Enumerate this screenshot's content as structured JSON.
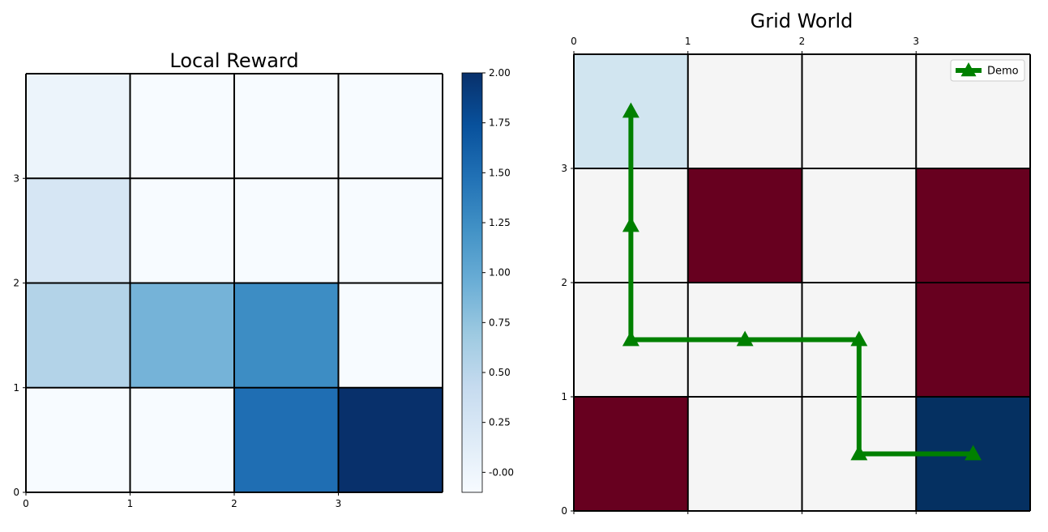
{
  "chart_data": [
    {
      "type": "heatmap",
      "title": "Local Reward",
      "xlabel": "",
      "ylabel": "",
      "x_ticks": [
        "0",
        "1",
        "2",
        "3"
      ],
      "y_ticks": [
        "0",
        "1",
        "2",
        "3"
      ],
      "rows_top_to_bottom": [
        [
          0.02,
          -0.1,
          -0.1,
          -0.1
        ],
        [
          0.25,
          -0.1,
          -0.1,
          -0.1
        ],
        [
          0.55,
          0.9,
          1.25,
          -0.1
        ],
        [
          -0.1,
          -0.1,
          1.5,
          2.0
        ]
      ],
      "colormap": "Blues",
      "colorbar": {
        "min": -0.1,
        "max": 2.0,
        "ticks": [
          "-0.00",
          "0.25",
          "0.50",
          "0.75",
          "1.00",
          "1.25",
          "1.50",
          "1.75",
          "2.00"
        ],
        "tick_values": [
          0,
          0.25,
          0.5,
          0.75,
          1.0,
          1.25,
          1.5,
          1.75,
          2.0
        ]
      },
      "grid": true
    },
    {
      "type": "heatmap",
      "title": "Grid World",
      "xlabel": "",
      "ylabel": "",
      "x_ticks": [
        "0",
        "1",
        "2",
        "3"
      ],
      "y_ticks": [
        "0",
        "1",
        "2",
        "3"
      ],
      "x_ticks_position": "top",
      "cell_types_top_to_bottom": [
        [
          "start",
          "empty",
          "empty",
          "empty"
        ],
        [
          "empty",
          "obstacle",
          "empty",
          "obstacle"
        ],
        [
          "empty",
          "empty",
          "empty",
          "obstacle"
        ],
        [
          "obstacle",
          "empty",
          "empty",
          "goal"
        ]
      ],
      "cell_colors": {
        "start": "#d1e5f0",
        "empty": "#f5f5f5",
        "obstacle": "#67001f",
        "goal": "#053061"
      },
      "grid": true,
      "series": [
        {
          "name": "Demo",
          "color": "#008000",
          "marker": "triangle-up",
          "x": [
            0.5,
            0.5,
            0.5,
            1.5,
            2.5,
            2.5,
            3.5
          ],
          "y": [
            3.5,
            2.5,
            1.5,
            1.5,
            1.5,
            0.5,
            0.5
          ]
        }
      ],
      "legend": "top-right"
    }
  ]
}
